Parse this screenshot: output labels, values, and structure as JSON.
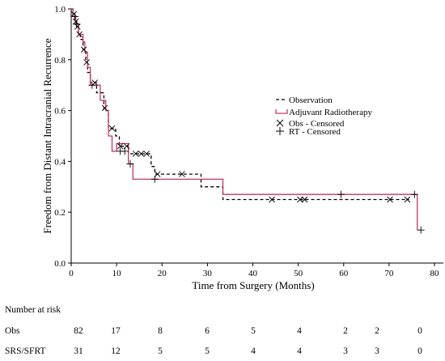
{
  "chart_data": {
    "type": "line",
    "subtype": "kaplan-meier",
    "xlabel": "Time from Surgery (Months)",
    "ylabel": "Freedom from Distant Intracranial Recurrence",
    "xlim": [
      0,
      80
    ],
    "ylim": [
      0,
      1
    ],
    "x_ticks": [
      0,
      10,
      20,
      30,
      40,
      50,
      60,
      70,
      80
    ],
    "y_ticks": [
      0.0,
      0.2,
      0.4,
      0.6,
      0.8,
      1.0
    ],
    "x_tick_labels": [
      "0",
      "10",
      "20",
      "30",
      "40",
      "50",
      "60",
      "70",
      "80"
    ],
    "y_tick_labels": [
      "0.0",
      "0.2",
      "0.4",
      "0.6",
      "0.8",
      "1.0"
    ],
    "grid": false,
    "legend_position": "center-right",
    "legend": [
      {
        "label": "Observation",
        "symbol": "dashed-line"
      },
      {
        "label": "Adjuvant Radiotherapy",
        "symbol": "solid-line"
      },
      {
        "label": "Obs - Censored",
        "symbol": "x-mark"
      },
      {
        "label": "RT - Censored",
        "symbol": "plus-mark"
      }
    ],
    "series": [
      {
        "name": "Observation",
        "style": "dashed",
        "color": "#000000",
        "steps": [
          [
            0,
            1.0
          ],
          [
            0.4,
            0.98
          ],
          [
            0.8,
            0.95
          ],
          [
            1.2,
            0.93
          ],
          [
            1.6,
            0.9
          ],
          [
            2.0,
            0.88
          ],
          [
            2.6,
            0.84
          ],
          [
            3.2,
            0.79
          ],
          [
            3.6,
            0.75
          ],
          [
            4.2,
            0.71
          ],
          [
            5.6,
            0.67
          ],
          [
            7.2,
            0.6
          ],
          [
            8.2,
            0.53
          ],
          [
            9.8,
            0.5
          ],
          [
            10.6,
            0.46
          ],
          [
            12.6,
            0.43
          ],
          [
            17.6,
            0.38
          ],
          [
            18.4,
            0.35
          ],
          [
            28.6,
            0.3
          ],
          [
            33.4,
            0.25
          ],
          [
            74.4,
            0.25
          ]
        ],
        "censored": [
          [
            0.6,
            0.98
          ],
          [
            1.0,
            0.95
          ],
          [
            1.4,
            0.93
          ],
          [
            1.8,
            0.9
          ],
          [
            2.8,
            0.84
          ],
          [
            3.4,
            0.79
          ],
          [
            5.2,
            0.71
          ],
          [
            7.4,
            0.61
          ],
          [
            9.0,
            0.53
          ],
          [
            10.8,
            0.46
          ],
          [
            12.2,
            0.46
          ],
          [
            14.2,
            0.43
          ],
          [
            15.4,
            0.43
          ],
          [
            16.6,
            0.43
          ],
          [
            19.0,
            0.35
          ],
          [
            24.4,
            0.35
          ],
          [
            44.2,
            0.25
          ],
          [
            50.4,
            0.25
          ],
          [
            51.4,
            0.25
          ],
          [
            70.2,
            0.25
          ],
          [
            74.0,
            0.25
          ]
        ]
      },
      {
        "name": "Adjuvant Radiotherapy",
        "style": "solid",
        "color": "#c4386c",
        "steps": [
          [
            0,
            1.0
          ],
          [
            0.4,
            0.97
          ],
          [
            1.0,
            0.94
          ],
          [
            1.6,
            0.9
          ],
          [
            2.6,
            0.87
          ],
          [
            3.0,
            0.83
          ],
          [
            3.6,
            0.77
          ],
          [
            4.2,
            0.7
          ],
          [
            6.4,
            0.64
          ],
          [
            7.6,
            0.6
          ],
          [
            8.2,
            0.5
          ],
          [
            9.0,
            0.44
          ],
          [
            10.0,
            0.47
          ],
          [
            12.6,
            0.39
          ],
          [
            13.6,
            0.33
          ],
          [
            33.4,
            0.27
          ],
          [
            76.0,
            0.27
          ],
          [
            76.2,
            0.13
          ]
        ],
        "censored": [
          [
            0.8,
            0.97
          ],
          [
            1.2,
            0.94
          ],
          [
            4.6,
            0.7
          ],
          [
            10.8,
            0.44
          ],
          [
            11.8,
            0.44
          ],
          [
            13.0,
            0.39
          ],
          [
            18.4,
            0.33
          ],
          [
            59.4,
            0.27
          ],
          [
            75.6,
            0.27
          ],
          [
            77.0,
            0.13
          ]
        ]
      }
    ],
    "risk_table": {
      "title": "Number at risk",
      "time_points": [
        0,
        10,
        20,
        30,
        40,
        50,
        60,
        70,
        80
      ],
      "rows": [
        {
          "label": "Obs",
          "values": [
            "82",
            "17",
            "8",
            "6",
            "5",
            "4",
            "2",
            "2",
            "0"
          ]
        },
        {
          "label": "SRS/SFRT",
          "values": [
            "31",
            "12",
            "5",
            "5",
            "4",
            "4",
            "3",
            "3",
            "0"
          ]
        }
      ]
    }
  }
}
